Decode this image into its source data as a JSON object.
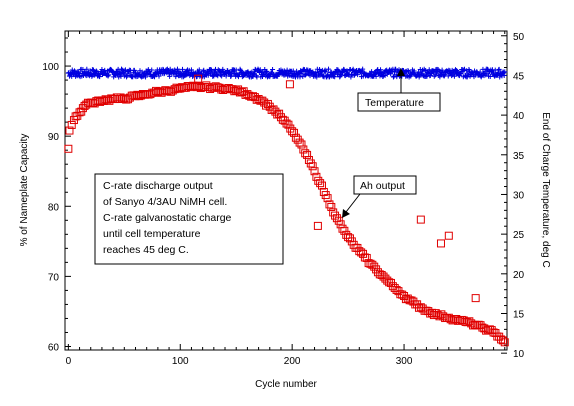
{
  "chart_data": {
    "type": "scatter",
    "title": "",
    "xlabel": "Cycle number",
    "ylabel_left": "% of Nameplate Capacity",
    "ylabel_right": "End of Charge Temperature, deg C",
    "xlim": [
      -3,
      392
    ],
    "ylim_left": [
      59.5,
      105
    ],
    "ylim_right": [
      10.4,
      50.6
    ],
    "x_ticks": [
      0,
      100,
      200,
      300
    ],
    "y_ticks_left": [
      60,
      70,
      80,
      90,
      100
    ],
    "y_ticks_right": [
      10,
      15,
      20,
      25,
      30,
      35,
      40,
      45,
      50
    ],
    "grid": false,
    "annotations": {
      "description": [
        "C-rate discharge output",
        "of Sanyo 4/3AU NiMH cell.",
        "C-rate galvanostatic charge",
        "until cell temperature",
        "reaches 45 deg C."
      ],
      "temperature_label": "Temperature",
      "capacity_label": "Ah output"
    },
    "series": [
      {
        "name": "Ah output",
        "axis": "left",
        "marker": "open-square",
        "color": "#e00000",
        "points": [
          [
            0,
            88.2
          ],
          [
            1,
            90.8
          ],
          [
            3,
            91.6
          ],
          [
            5,
            92.3
          ],
          [
            8,
            92.9
          ],
          [
            10,
            93.4
          ],
          [
            13,
            94.0
          ],
          [
            16,
            94.5
          ],
          [
            19,
            94.7
          ],
          [
            22,
            94.8
          ],
          [
            25,
            95.0
          ],
          [
            30,
            95.1
          ],
          [
            35,
            95.2
          ],
          [
            40,
            95.3
          ],
          [
            45,
            95.3
          ],
          [
            50,
            95.4
          ],
          [
            55,
            95.5
          ],
          [
            60,
            95.7
          ],
          [
            65,
            95.8
          ],
          [
            70,
            96.0
          ],
          [
            75,
            96.2
          ],
          [
            80,
            96.3
          ],
          [
            85,
            96.4
          ],
          [
            90,
            96.5
          ],
          [
            95,
            96.7
          ],
          [
            100,
            96.8
          ],
          [
            105,
            96.9
          ],
          [
            110,
            97.0
          ],
          [
            115,
            97.0
          ],
          [
            116,
            98.2
          ],
          [
            120,
            97.0
          ],
          [
            125,
            97.0
          ],
          [
            130,
            96.9
          ],
          [
            135,
            96.9
          ],
          [
            140,
            96.8
          ],
          [
            145,
            96.7
          ],
          [
            150,
            96.5
          ],
          [
            155,
            96.3
          ],
          [
            160,
            96.0
          ],
          [
            165,
            95.7
          ],
          [
            170,
            95.3
          ],
          [
            175,
            94.8
          ],
          [
            180,
            94.2
          ],
          [
            185,
            93.5
          ],
          [
            190,
            92.7
          ],
          [
            195,
            91.8
          ],
          [
            198,
            97.4
          ],
          [
            200,
            90.7
          ],
          [
            205,
            89.5
          ],
          [
            210,
            88.1
          ],
          [
            215,
            86.6
          ],
          [
            220,
            85.0
          ],
          [
            223,
            77.2
          ],
          [
            225,
            83.3
          ],
          [
            230,
            81.6
          ],
          [
            235,
            79.9
          ],
          [
            240,
            78.3
          ],
          [
            245,
            76.8
          ],
          [
            250,
            75.6
          ],
          [
            255,
            74.5
          ],
          [
            260,
            73.6
          ],
          [
            265,
            72.7
          ],
          [
            270,
            71.8
          ],
          [
            275,
            71.0
          ],
          [
            280,
            70.2
          ],
          [
            285,
            69.4
          ],
          [
            290,
            68.6
          ],
          [
            295,
            67.9
          ],
          [
            300,
            67.2
          ],
          [
            305,
            66.6
          ],
          [
            310,
            66.0
          ],
          [
            315,
            65.6
          ],
          [
            315,
            78.1
          ],
          [
            320,
            65.1
          ],
          [
            325,
            64.8
          ],
          [
            330,
            64.5
          ],
          [
            333,
            74.7
          ],
          [
            335,
            64.3
          ],
          [
            340,
            64.1
          ],
          [
            340,
            75.8
          ],
          [
            345,
            63.9
          ],
          [
            350,
            63.7
          ],
          [
            355,
            63.5
          ],
          [
            360,
            63.3
          ],
          [
            364,
            66.9
          ],
          [
            365,
            63.0
          ],
          [
            370,
            62.7
          ],
          [
            375,
            62.4
          ],
          [
            380,
            62.0
          ],
          [
            385,
            61.4
          ],
          [
            390,
            60.6
          ]
        ]
      },
      {
        "name": "Temperature",
        "axis": "right",
        "marker": "plus",
        "color": "#0000e0",
        "y_mean": 45.3,
        "y_spread": 0.5,
        "x_range": [
          0,
          390
        ]
      }
    ]
  }
}
